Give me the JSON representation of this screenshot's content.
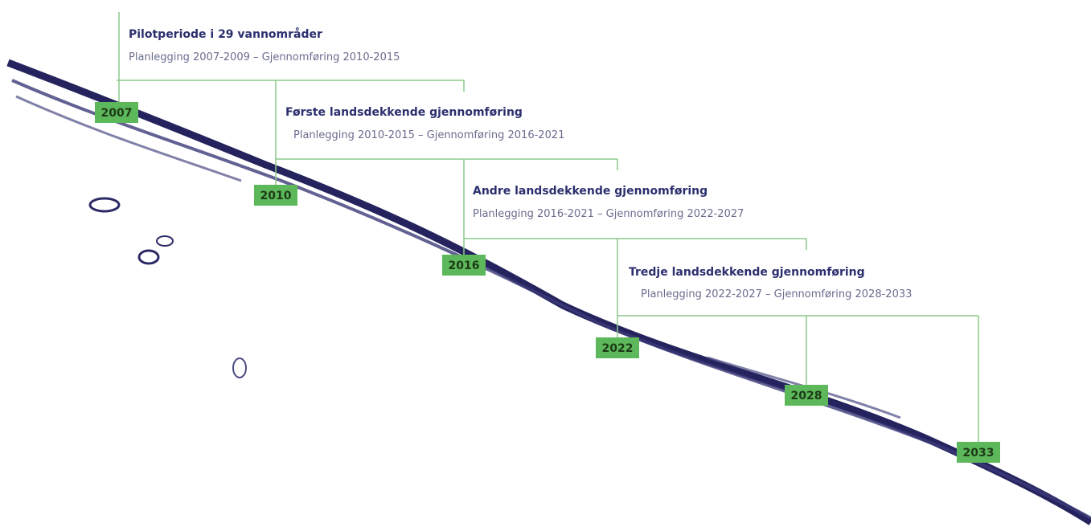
{
  "years": [
    "2007",
    "2010",
    "2016",
    "2022",
    "2028",
    "2033"
  ],
  "phases": [
    {
      "title": "Pilotperiode i 29 vannområder",
      "subtitle": "Planlegging 2007-2009 – Gjennomføring 2010-2015"
    },
    {
      "title": "Første landsdekkende gjennomføring",
      "subtitle": "Planlegging 2010-2015 – Gjennomføring 2016-2021"
    },
    {
      "title": "Andre landsdekkende gjennomføring",
      "subtitle": "Planlegging 2016-2021 – Gjennomføring 2022-2027"
    },
    {
      "title": "Tredje landsdekkende gjennomføring",
      "subtitle": "Planlegging 2022-2027 – Gjennomføring 2028-2033"
    }
  ]
}
